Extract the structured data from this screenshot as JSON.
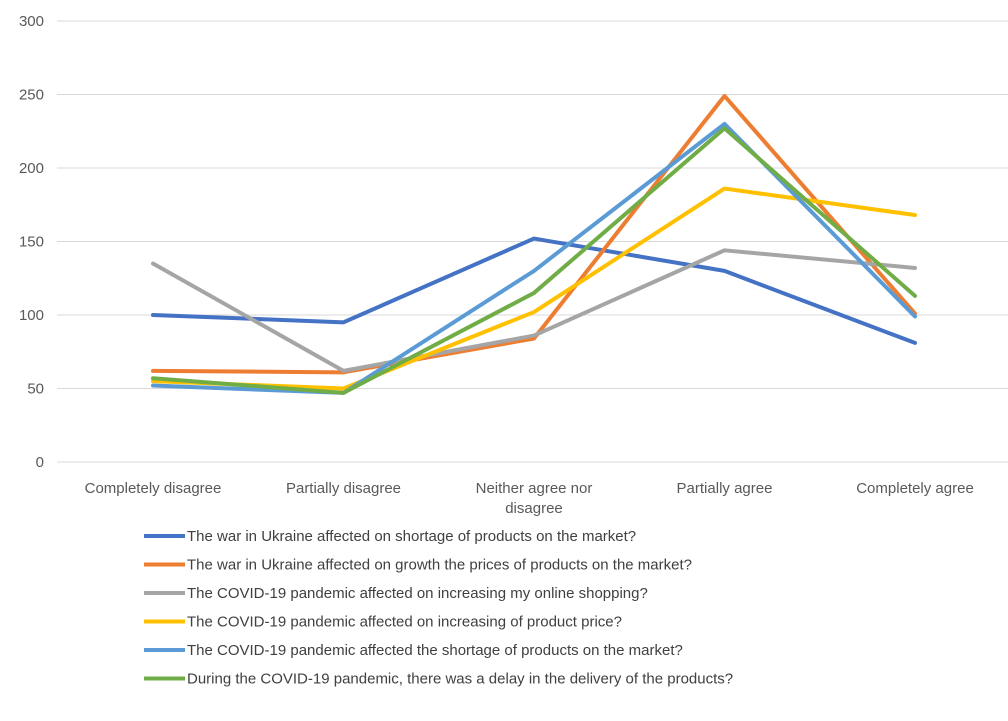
{
  "chart_data": {
    "type": "line",
    "title": "",
    "xlabel": "",
    "ylabel": "",
    "ylim": [
      0,
      300
    ],
    "y_ticks": [
      0,
      50,
      100,
      150,
      200,
      250,
      300
    ],
    "grid": true,
    "legend_position": "bottom",
    "categories": [
      [
        "Completely disagree"
      ],
      [
        "Partially disagree"
      ],
      [
        "Neither agree nor",
        "disagree"
      ],
      [
        "Partially agree"
      ],
      [
        "Completely agree"
      ]
    ],
    "series": [
      {
        "name": "The war in Ukraine affected on shortage of products on the market?",
        "color": "#4472C4",
        "values": [
          100,
          95,
          152,
          130,
          81
        ]
      },
      {
        "name": "The war in Ukraine affected on growth the prices of products on the market?",
        "color": "#ED7D31",
        "values": [
          62,
          61,
          84,
          249,
          101
        ]
      },
      {
        "name": "The COVID-19 pandemic affected on increasing my online shopping?",
        "color": "#A5A5A5",
        "values": [
          135,
          62,
          86,
          144,
          132
        ]
      },
      {
        "name": "The COVID-19 pandemic affected on increasing of product price?",
        "color": "#FFC000",
        "values": [
          55,
          50,
          102,
          186,
          168
        ]
      },
      {
        "name": "The COVID-19 pandemic affected the shortage of products on the market?",
        "color": "#5B9BD5",
        "values": [
          52,
          47,
          130,
          230,
          99
        ]
      },
      {
        "name": "During the COVID-19 pandemic, there was a delay in the delivery of the products?",
        "color": "#70AD47",
        "values": [
          57,
          47,
          115,
          227,
          113
        ]
      }
    ]
  }
}
